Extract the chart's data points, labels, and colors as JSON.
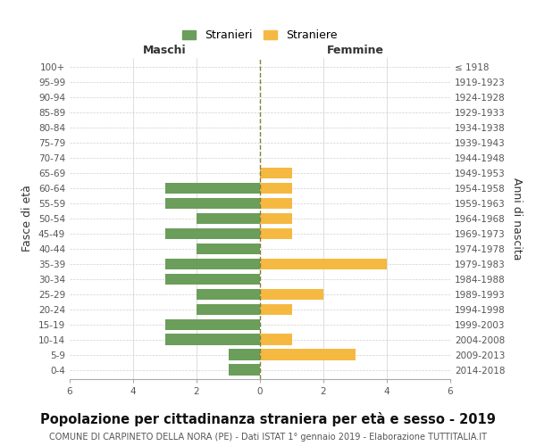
{
  "age_groups": [
    "0-4",
    "5-9",
    "10-14",
    "15-19",
    "20-24",
    "25-29",
    "30-34",
    "35-39",
    "40-44",
    "45-49",
    "50-54",
    "55-59",
    "60-64",
    "65-69",
    "70-74",
    "75-79",
    "80-84",
    "85-89",
    "90-94",
    "95-99",
    "100+"
  ],
  "birth_years": [
    "2014-2018",
    "2009-2013",
    "2004-2008",
    "1999-2003",
    "1994-1998",
    "1989-1993",
    "1984-1988",
    "1979-1983",
    "1974-1978",
    "1969-1973",
    "1964-1968",
    "1959-1963",
    "1954-1958",
    "1949-1953",
    "1944-1948",
    "1939-1943",
    "1934-1938",
    "1929-1933",
    "1924-1928",
    "1919-1923",
    "≤ 1918"
  ],
  "males": [
    1,
    1,
    3,
    3,
    2,
    2,
    3,
    3,
    2,
    3,
    2,
    3,
    3,
    0,
    0,
    0,
    0,
    0,
    0,
    0,
    0
  ],
  "females": [
    0,
    3,
    1,
    0,
    1,
    2,
    0,
    4,
    0,
    1,
    1,
    1,
    1,
    1,
    0,
    0,
    0,
    0,
    0,
    0,
    0
  ],
  "male_color": "#6a9e5a",
  "female_color": "#f5b942",
  "title": "Popolazione per cittadinanza straniera per età e sesso - 2019",
  "subtitle": "COMUNE DI CARPINETO DELLA NORA (PE) - Dati ISTAT 1° gennaio 2019 - Elaborazione TUTTITALIA.IT",
  "ylabel_left": "Fasce di età",
  "ylabel_right": "Anni di nascita",
  "xlabel_left": "Maschi",
  "xlabel_right": "Femmine",
  "legend_male": "Stranieri",
  "legend_female": "Straniere",
  "xlim": 6,
  "background_color": "#ffffff",
  "grid_color": "#d0d0d0",
  "title_fontsize": 10.5,
  "subtitle_fontsize": 7,
  "axis_label_fontsize": 9,
  "tick_fontsize": 7.5,
  "bar_height": 0.75
}
